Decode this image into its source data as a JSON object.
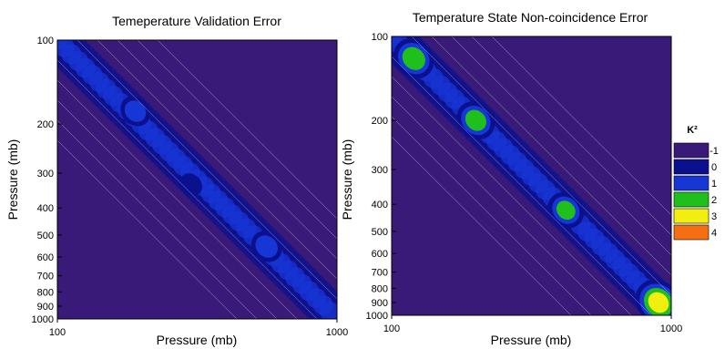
{
  "chart_data": [
    {
      "type": "heatmap",
      "title": "Temeperature Validation Error",
      "xlabel": "Pressure (mb)",
      "ylabel": "Pressure (mb)",
      "x_scale": "log",
      "y_scale": "log",
      "xlim": [
        100,
        1000
      ],
      "ylim": [
        100,
        1000
      ],
      "x_ticks": [
        "100",
        "1000"
      ],
      "y_ticks": [
        "100",
        "200",
        "300",
        "400",
        "500",
        "600",
        "700",
        "800",
        "900",
        "1000"
      ],
      "peaks": [
        {
          "x": 190,
          "y": 180,
          "value": 1.6
        },
        {
          "x": 560,
          "y": 550,
          "value": 1.7
        },
        {
          "x": 300,
          "y": 330,
          "value": 0.9
        }
      ],
      "background_value": -0.4
    },
    {
      "type": "heatmap",
      "title": "Temperature State Non-coincidence Error",
      "xlabel": "Pressure (mb)",
      "ylabel": "Pressure (mb)",
      "x_scale": "log",
      "y_scale": "log",
      "xlim": [
        100,
        1000
      ],
      "ylim": [
        100,
        1000
      ],
      "x_ticks": [
        "100",
        "1000"
      ],
      "y_ticks": [
        "100",
        "200",
        "300",
        "400",
        "500",
        "600",
        "700",
        "800",
        "900",
        "1000"
      ],
      "peaks": [
        {
          "x": 120,
          "y": 120,
          "value": 2.6
        },
        {
          "x": 200,
          "y": 200,
          "value": 2.4
        },
        {
          "x": 420,
          "y": 420,
          "value": 2.2
        },
        {
          "x": 900,
          "y": 900,
          "value": 3.2
        }
      ],
      "background_value": -0.5
    }
  ],
  "legend": {
    "title": "K²",
    "entries": [
      {
        "label": "-1",
        "color": "#3a1a78"
      },
      {
        "label": "0",
        "color": "#0b108f"
      },
      {
        "label": "1",
        "color": "#1736d6"
      },
      {
        "label": "2",
        "color": "#20c01c"
      },
      {
        "label": "3",
        "color": "#f2ef10"
      },
      {
        "label": "4",
        "color": "#f56f12"
      }
    ]
  }
}
